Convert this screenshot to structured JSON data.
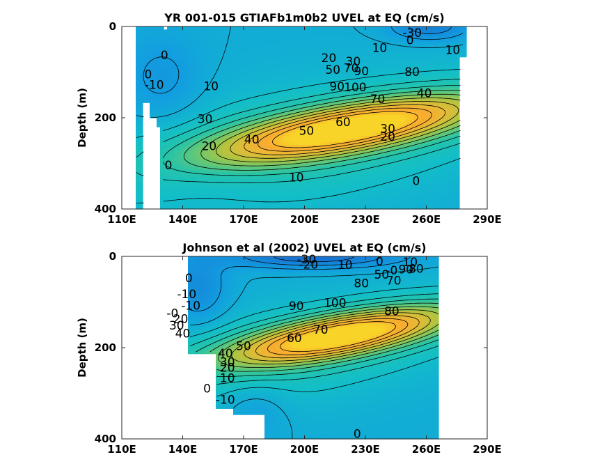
{
  "chart_data": [
    {
      "type": "heatmap",
      "subtype": "filled-contour",
      "title": "YR 001-015 GTIAFb1m0b2 UVEL at EQ (cm/s)",
      "xlabel": "",
      "ylabel": "Depth (m)",
      "xlim": [
        110,
        290
      ],
      "ylim": [
        400,
        0
      ],
      "y_reversed": true,
      "x_ticks": [
        110,
        140,
        170,
        200,
        230,
        260,
        290
      ],
      "x_tick_labels": [
        "110E",
        "140E",
        "170E",
        "200E",
        "230E",
        "260E",
        "290E"
      ],
      "y_ticks": [
        0,
        200,
        400
      ],
      "y_tick_labels": [
        "0",
        "200",
        "400"
      ],
      "colormap": "parula",
      "grid": false,
      "core": {
        "lon": 220,
        "depth": 155,
        "value": 100
      },
      "contour_labels": [
        {
          "text": "-30",
          "lon": 253,
          "depth": 15
        },
        {
          "text": "0",
          "lon": 252,
          "depth": 31
        },
        {
          "text": "10",
          "lon": 237,
          "depth": 48
        },
        {
          "text": "10",
          "lon": 273,
          "depth": 53
        },
        {
          "text": "0",
          "lon": 131,
          "depth": 64
        },
        {
          "text": "20",
          "lon": 212,
          "depth": 70
        },
        {
          "text": "30",
          "lon": 224,
          "depth": 78
        },
        {
          "text": "50",
          "lon": 214,
          "depth": 96
        },
        {
          "text": "70",
          "lon": 223,
          "depth": 92
        },
        {
          "text": "90",
          "lon": 228,
          "depth": 99
        },
        {
          "text": "80",
          "lon": 253,
          "depth": 101
        },
        {
          "text": "0",
          "lon": 123,
          "depth": 106
        },
        {
          "text": "40",
          "lon": 259,
          "depth": 147
        },
        {
          "text": "-10",
          "lon": 126,
          "depth": 129
        },
        {
          "text": "10",
          "lon": 154,
          "depth": 132
        },
        {
          "text": "100",
          "lon": 225,
          "depth": 134
        },
        {
          "text": "90",
          "lon": 216,
          "depth": 133
        },
        {
          "text": "70",
          "lon": 236,
          "depth": 160
        },
        {
          "text": "30",
          "lon": 151,
          "depth": 204
        },
        {
          "text": "60",
          "lon": 219,
          "depth": 211
        },
        {
          "text": "50",
          "lon": 201,
          "depth": 230
        },
        {
          "text": "40",
          "lon": 174,
          "depth": 249
        },
        {
          "text": "30",
          "lon": 241,
          "depth": 225
        },
        {
          "text": "20",
          "lon": 241,
          "depth": 243
        },
        {
          "text": "20",
          "lon": 153,
          "depth": 263
        },
        {
          "text": "0",
          "lon": 133,
          "depth": 305
        },
        {
          "text": "10",
          "lon": 196,
          "depth": 332
        },
        {
          "text": "0",
          "lon": 255,
          "depth": 340
        }
      ]
    },
    {
      "type": "heatmap",
      "subtype": "filled-contour",
      "title": "Johnson et al (2002) UVEL at EQ (cm/s)",
      "xlabel": "",
      "ylabel": "Depth (m)",
      "xlim": [
        110,
        290
      ],
      "ylim": [
        400,
        0
      ],
      "y_reversed": true,
      "x_ticks": [
        110,
        140,
        170,
        200,
        230,
        260,
        290
      ],
      "x_tick_labels": [
        "110E",
        "140E",
        "170E",
        "200E",
        "230E",
        "260E",
        "290E"
      ],
      "y_ticks": [
        0,
        200,
        400
      ],
      "y_tick_labels": [
        "0",
        "200",
        "400"
      ],
      "colormap": "parula",
      "grid": false,
      "core": {
        "lon": 215,
        "depth": 130,
        "value": 100
      },
      "contour_labels": [
        {
          "text": "-30",
          "lon": 201,
          "depth": 8
        },
        {
          "text": "0",
          "lon": 237,
          "depth": 12
        },
        {
          "text": "10",
          "lon": 252,
          "depth": 14
        },
        {
          "text": "-20",
          "lon": 202,
          "depth": 19
        },
        {
          "text": "10",
          "lon": 220,
          "depth": 20
        },
        {
          "text": "-0",
          "lon": 243,
          "depth": 32
        },
        {
          "text": "80",
          "lon": 255,
          "depth": 28
        },
        {
          "text": "90",
          "lon": 250,
          "depth": 30
        },
        {
          "text": "50",
          "lon": 238,
          "depth": 41
        },
        {
          "text": "70",
          "lon": 244,
          "depth": 54
        },
        {
          "text": "80",
          "lon": 228,
          "depth": 60
        },
        {
          "text": "0",
          "lon": 143,
          "depth": 49
        },
        {
          "text": "-10",
          "lon": 142,
          "depth": 84
        },
        {
          "text": "100",
          "lon": 215,
          "depth": 103
        },
        {
          "text": "-10",
          "lon": 144,
          "depth": 109
        },
        {
          "text": "90",
          "lon": 196,
          "depth": 110
        },
        {
          "text": "80",
          "lon": 243,
          "depth": 121
        },
        {
          "text": "-0",
          "lon": 135,
          "depth": 126
        },
        {
          "text": "20",
          "lon": 139,
          "depth": 138
        },
        {
          "text": "30",
          "lon": 137,
          "depth": 153
        },
        {
          "text": "40",
          "lon": 140,
          "depth": 170
        },
        {
          "text": "70",
          "lon": 208,
          "depth": 162
        },
        {
          "text": "60",
          "lon": 195,
          "depth": 180
        },
        {
          "text": "50",
          "lon": 170,
          "depth": 198
        },
        {
          "text": "40",
          "lon": 161,
          "depth": 214
        },
        {
          "text": "30",
          "lon": 162,
          "depth": 233
        },
        {
          "text": "20",
          "lon": 162,
          "depth": 245
        },
        {
          "text": "10",
          "lon": 162,
          "depth": 268
        },
        {
          "text": "0",
          "lon": 152,
          "depth": 291
        },
        {
          "text": "-10",
          "lon": 161,
          "depth": 315
        },
        {
          "text": "0",
          "lon": 226,
          "depth": 390
        }
      ]
    }
  ]
}
